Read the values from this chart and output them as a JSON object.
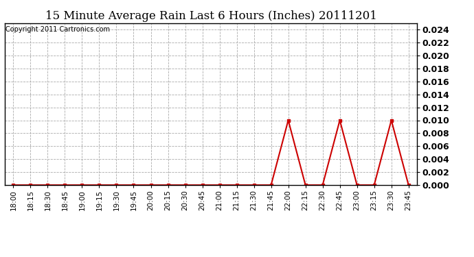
{
  "title": "15 Minute Average Rain Last 6 Hours (Inches) 20111201",
  "copyright_text": "Copyright 2011 Cartronics.com",
  "line_color": "#cc0000",
  "marker": "s",
  "marker_size": 2.5,
  "background_color": "#ffffff",
  "grid_color": "#aaaaaa",
  "ylim": [
    0.0,
    0.025
  ],
  "yticks": [
    0.0,
    0.002,
    0.004,
    0.006,
    0.008,
    0.01,
    0.012,
    0.014,
    0.016,
    0.018,
    0.02,
    0.022,
    0.024
  ],
  "x_labels": [
    "18:00",
    "18:15",
    "18:30",
    "18:45",
    "19:00",
    "19:15",
    "19:30",
    "19:45",
    "20:00",
    "20:15",
    "20:30",
    "20:45",
    "21:00",
    "21:15",
    "21:30",
    "21:45",
    "22:00",
    "22:15",
    "22:30",
    "22:45",
    "23:00",
    "23:15",
    "23:30",
    "23:45"
  ],
  "y_values": [
    0.0,
    0.0,
    0.0,
    0.0,
    0.0,
    0.0,
    0.0,
    0.0,
    0.0,
    0.0,
    0.0,
    0.0,
    0.0,
    0.0,
    0.0,
    0.0,
    0.01,
    0.0,
    0.0,
    0.01,
    0.0,
    0.0,
    0.01,
    0.0
  ],
  "title_fontsize": 12,
  "ytick_fontsize": 9,
  "xtick_fontsize": 7.5,
  "copyright_fontsize": 7
}
